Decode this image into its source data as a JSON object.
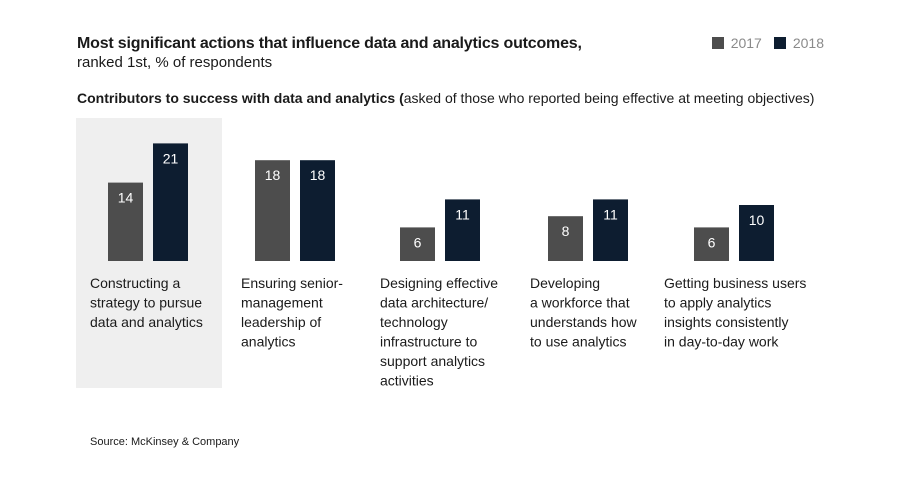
{
  "header": {
    "title": "Most significant actions that influence data and analytics outcomes,",
    "subtitle": "ranked 1st, % of respondents",
    "section_bold": "Contributors to success with data and analytics (",
    "section_rest": "asked of those who reported being effective at meeting objectives)"
  },
  "legend": [
    {
      "label": "2017",
      "color": "#4d4d4d"
    },
    {
      "label": "2018",
      "color": "#0d1d30"
    }
  ],
  "chart_data": {
    "type": "bar",
    "categories": [
      "Constructing a strategy to pursue data and analytics",
      "Ensuring senior-management leadership of analytics",
      "Designing effective data architecture/ technology infrastructure to support analytics activities",
      "Developing a workforce that understands how to use analytics",
      "Getting business users to apply analytics insights consistently in day-to-day work"
    ],
    "category_lines": [
      [
        "Constructing a",
        "strategy to pursue",
        "data and analytics"
      ],
      [
        "Ensuring senior-",
        "management",
        "leadership of",
        "analytics"
      ],
      [
        "Designing effective",
        "data architecture/",
        "technology",
        "infrastructure to",
        "support analytics",
        "activities"
      ],
      [
        "Developing",
        "a workforce that",
        "understands how",
        "to use analytics"
      ],
      [
        "Getting business users",
        "to apply analytics",
        "insights consistently",
        "in day-to-day work"
      ]
    ],
    "series": [
      {
        "name": "2017",
        "values": [
          14,
          18,
          6,
          8,
          6
        ]
      },
      {
        "name": "2018",
        "values": [
          21,
          18,
          11,
          11,
          10
        ]
      }
    ],
    "highlighted_category": 0,
    "colors": {
      "2017": "#4d4d4d",
      "2018": "#0d1d30",
      "highlight_bg": "#efefef"
    }
  },
  "source": "Source: McKinsey & Company"
}
